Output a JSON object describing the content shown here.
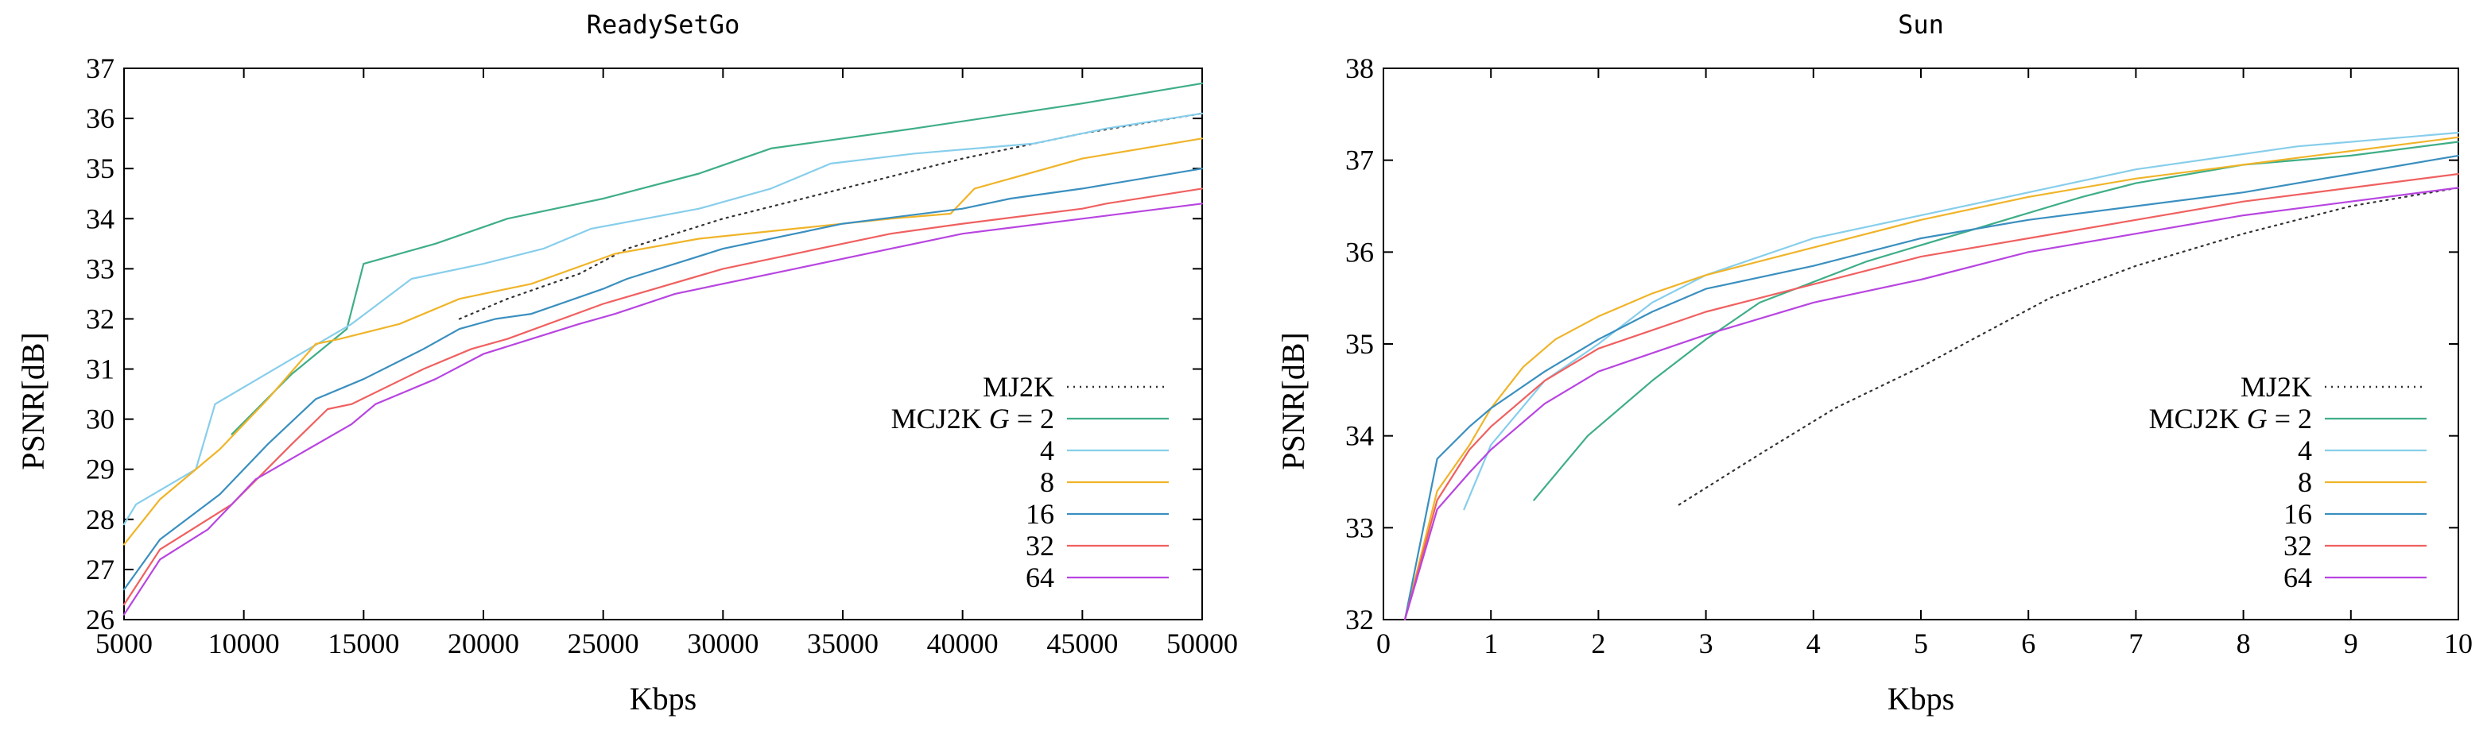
{
  "chart_data": [
    {
      "type": "line",
      "title": "ReadySetGo",
      "xlabel": "Kbps",
      "ylabel": "PSNR[dB]",
      "xlim": [
        5000,
        50000
      ],
      "ylim": [
        26,
        37
      ],
      "xticks": [
        5000,
        10000,
        15000,
        20000,
        25000,
        30000,
        35000,
        40000,
        45000,
        50000
      ],
      "yticks": [
        26,
        27,
        28,
        29,
        30,
        31,
        32,
        33,
        34,
        35,
        36,
        37
      ],
      "grid": false,
      "legend_position": "bottom-right",
      "series": [
        {
          "name": "MJ2K",
          "label_prefix": "",
          "color": "#333333",
          "dash": "dotted",
          "x": [
            19000,
            21000,
            24000,
            26000,
            30000,
            35000,
            40000,
            45000,
            50000
          ],
          "y": [
            32.0,
            32.4,
            32.9,
            33.4,
            34.0,
            34.6,
            35.2,
            35.7,
            36.1
          ]
        },
        {
          "name": "MCJ2K G = 2",
          "label_prefix": "MCJ2K ",
          "label_italic": "G",
          "label_suffix": " = 2",
          "color": "#3fae86",
          "dash": "solid",
          "x": [
            9500,
            12000,
            14300,
            15000,
            18000,
            21000,
            25000,
            29000,
            32000,
            38000,
            45000,
            50000
          ],
          "y": [
            29.7,
            30.9,
            31.8,
            33.1,
            33.5,
            34.0,
            34.4,
            34.9,
            35.4,
            35.8,
            36.3,
            36.7
          ]
        },
        {
          "name": "4",
          "label_prefix": "4",
          "color": "#87ceeb",
          "dash": "solid",
          "x": [
            5000,
            5500,
            8000,
            8800,
            12000,
            14500,
            17000,
            20000,
            22500,
            24500,
            29000,
            32000,
            34500,
            38000,
            43000,
            46000,
            50000
          ],
          "y": [
            27.9,
            28.3,
            29.0,
            30.3,
            31.2,
            31.9,
            32.8,
            33.1,
            33.4,
            33.8,
            34.2,
            34.6,
            35.1,
            35.3,
            35.5,
            35.8,
            36.1
          ]
        },
        {
          "name": "8",
          "label_prefix": "8",
          "color": "#f0b429",
          "dash": "solid",
          "x": [
            5000,
            6500,
            9000,
            11000,
            13000,
            14000,
            16500,
            19000,
            22000,
            25500,
            29000,
            33000,
            37000,
            39500,
            40500,
            45000,
            50000
          ],
          "y": [
            27.5,
            28.4,
            29.4,
            30.4,
            31.5,
            31.6,
            31.9,
            32.4,
            32.7,
            33.3,
            33.6,
            33.8,
            34.0,
            34.1,
            34.6,
            35.2,
            35.6
          ]
        },
        {
          "name": "16",
          "label_prefix": "16",
          "color": "#3a8fbf",
          "dash": "solid",
          "x": [
            5000,
            6500,
            9000,
            11000,
            13000,
            15000,
            17500,
            19000,
            20500,
            22000,
            25000,
            26000,
            30000,
            35000,
            40000,
            42000,
            45000,
            50000
          ],
          "y": [
            26.6,
            27.6,
            28.5,
            29.5,
            30.4,
            30.8,
            31.4,
            31.8,
            32.0,
            32.1,
            32.6,
            32.8,
            33.4,
            33.9,
            34.2,
            34.4,
            34.6,
            35.0
          ]
        },
        {
          "name": "32",
          "label_prefix": "32",
          "color": "#f06060",
          "dash": "solid",
          "x": [
            5000,
            6500,
            9500,
            12000,
            13500,
            14500,
            17500,
            19500,
            21000,
            25000,
            30000,
            37000,
            40000,
            45000,
            46000,
            50000
          ],
          "y": [
            26.3,
            27.4,
            28.3,
            29.5,
            30.2,
            30.3,
            31.0,
            31.4,
            31.6,
            32.3,
            33.0,
            33.7,
            33.9,
            34.2,
            34.3,
            34.6
          ]
        },
        {
          "name": "64",
          "label_prefix": "64",
          "color": "#b845e0",
          "dash": "solid",
          "x": [
            5000,
            6500,
            8500,
            10500,
            14500,
            15500,
            16500,
            18000,
            20000,
            22000,
            24000,
            25500,
            28000,
            33000,
            37000,
            40000,
            45000,
            50000
          ],
          "y": [
            26.1,
            27.2,
            27.8,
            28.8,
            29.9,
            30.3,
            30.5,
            30.8,
            31.3,
            31.6,
            31.9,
            32.1,
            32.5,
            33.0,
            33.4,
            33.7,
            34.0,
            34.3
          ]
        }
      ]
    },
    {
      "type": "line",
      "title": "Sun",
      "xlabel": "Kbps",
      "ylabel": "PSNR[dB]",
      "xlim": [
        0,
        10
      ],
      "ylim": [
        32,
        38
      ],
      "xticks": [
        0,
        1,
        2,
        3,
        4,
        5,
        6,
        7,
        8,
        9,
        10
      ],
      "yticks": [
        32,
        33,
        34,
        35,
        36,
        37,
        38
      ],
      "grid": false,
      "legend_position": "bottom-right",
      "series": [
        {
          "name": "MJ2K",
          "label_prefix": "",
          "color": "#333333",
          "dash": "dotted",
          "x": [
            2.75,
            3.5,
            4.2,
            5.0,
            6.2,
            7.0,
            8.0,
            9.0,
            10.0
          ],
          "y": [
            33.25,
            33.8,
            34.3,
            34.75,
            35.5,
            35.85,
            36.2,
            36.5,
            36.7
          ]
        },
        {
          "name": "MCJ2K G = 2",
          "label_prefix": "MCJ2K ",
          "label_italic": "G",
          "label_suffix": " = 2",
          "color": "#3fae86",
          "dash": "solid",
          "x": [
            1.4,
            1.9,
            2.5,
            3.0,
            3.5,
            4.5,
            5.5,
            6.5,
            7.0,
            8.0,
            9.0,
            10.0
          ],
          "y": [
            33.3,
            34.0,
            34.6,
            35.05,
            35.45,
            35.9,
            36.25,
            36.6,
            36.75,
            36.95,
            37.05,
            37.2
          ]
        },
        {
          "name": "4",
          "label_prefix": "4",
          "color": "#87ceeb",
          "dash": "solid",
          "x": [
            0.75,
            1.0,
            1.5,
            2.0,
            2.5,
            3.0,
            4.0,
            5.0,
            6.0,
            7.0,
            8.5,
            10.0
          ],
          "y": [
            33.2,
            33.9,
            34.6,
            35.0,
            35.45,
            35.75,
            36.15,
            36.4,
            36.65,
            36.9,
            37.15,
            37.3
          ]
        },
        {
          "name": "8",
          "label_prefix": "8",
          "color": "#f0b429",
          "dash": "solid",
          "x": [
            0.2,
            0.5,
            0.8,
            1.0,
            1.3,
            1.6,
            2.0,
            2.5,
            3.0,
            4.0,
            5.0,
            6.0,
            7.0,
            8.0,
            9.0,
            10.0
          ],
          "y": [
            32.0,
            33.4,
            33.9,
            34.3,
            34.75,
            35.05,
            35.3,
            35.55,
            35.75,
            36.05,
            36.35,
            36.6,
            36.8,
            36.95,
            37.1,
            37.25
          ]
        },
        {
          "name": "16",
          "label_prefix": "16",
          "color": "#3a8fbf",
          "dash": "solid",
          "x": [
            0.2,
            0.5,
            0.8,
            1.0,
            1.5,
            2.0,
            2.5,
            3.0,
            4.0,
            5.0,
            6.0,
            7.0,
            8.0,
            9.0,
            10.0
          ],
          "y": [
            32.0,
            33.75,
            34.1,
            34.3,
            34.7,
            35.05,
            35.35,
            35.6,
            35.85,
            36.15,
            36.35,
            36.5,
            36.65,
            36.85,
            37.05
          ]
        },
        {
          "name": "32",
          "label_prefix": "32",
          "color": "#f06060",
          "dash": "solid",
          "x": [
            0.2,
            0.5,
            0.8,
            1.0,
            1.5,
            2.0,
            2.5,
            3.0,
            4.0,
            5.0,
            6.0,
            7.0,
            8.0,
            9.0,
            10.0
          ],
          "y": [
            32.0,
            33.3,
            33.85,
            34.1,
            34.6,
            34.95,
            35.15,
            35.35,
            35.65,
            35.95,
            36.15,
            36.35,
            36.55,
            36.7,
            36.85
          ]
        },
        {
          "name": "64",
          "label_prefix": "64",
          "color": "#b845e0",
          "dash": "solid",
          "x": [
            0.2,
            0.5,
            0.8,
            1.0,
            1.5,
            2.0,
            2.5,
            3.0,
            4.0,
            5.0,
            6.0,
            7.0,
            8.0,
            9.0,
            10.0
          ],
          "y": [
            32.0,
            33.2,
            33.6,
            33.85,
            34.35,
            34.7,
            34.9,
            35.1,
            35.45,
            35.7,
            36.0,
            36.2,
            36.4,
            36.55,
            36.7
          ]
        }
      ]
    }
  ]
}
